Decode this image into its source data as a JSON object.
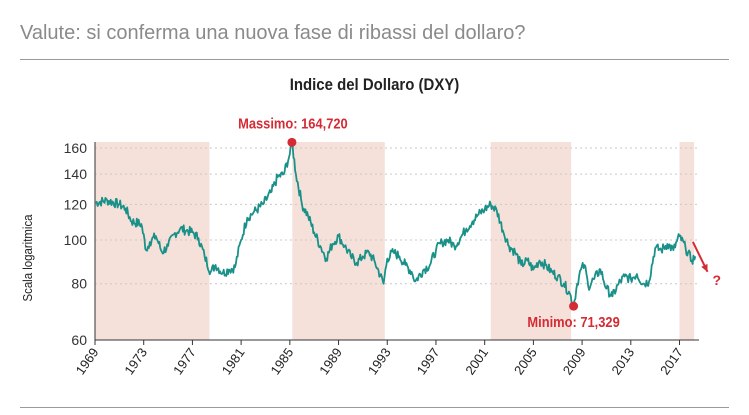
{
  "page": {
    "title": "Valute: si conferma una nuova fase di ribassi del dollaro?"
  },
  "chart_data": {
    "type": "line",
    "title": "Indice del Dollaro (DXY)",
    "ylabel": "Scala logaritmica",
    "xlabel": "",
    "y_scale": "log",
    "xlim": [
      1969,
      2018.6
    ],
    "ylim": [
      60,
      165
    ],
    "grid": {
      "horizontal": true,
      "style": "dotted"
    },
    "y_ticks": [
      60,
      80,
      100,
      120,
      140,
      160
    ],
    "x_ticks": [
      1969,
      1973,
      1977,
      1981,
      1985,
      1989,
      1993,
      1997,
      2001,
      2005,
      2009,
      2013,
      2017
    ],
    "x_tick_labels": [
      "1969",
      "1973",
      "1977",
      "1981",
      "1985",
      "1989",
      "1993",
      "1997",
      "2001",
      "2005",
      "2009",
      "2013",
      "2017"
    ],
    "shaded_periods": [
      {
        "start": 1969,
        "end": 1978.4
      },
      {
        "start": 1985.2,
        "end": 1992.8
      },
      {
        "start": 2001.5,
        "end": 2008.1
      },
      {
        "start": 2017.0,
        "end": 2018.2
      }
    ],
    "series": [
      {
        "x": [
          1969.0,
          1970.0,
          1971.0,
          1971.5,
          1972.0,
          1972.8,
          1973.2,
          1973.5,
          1974.0,
          1974.5,
          1975.0,
          1975.5,
          1976.0,
          1976.5,
          1977.0,
          1977.5,
          1978.0,
          1978.5,
          1978.9,
          1979.5,
          1980.0,
          1980.5,
          1981.0,
          1981.5,
          1982.0,
          1982.8,
          1983.5,
          1984.0,
          1984.5,
          1985.0,
          1985.17,
          1985.5,
          1986.0,
          1986.5,
          1987.0,
          1987.5,
          1988.0,
          1988.5,
          1989.0,
          1989.5,
          1990.0,
          1990.5,
          1991.0,
          1991.5,
          1992.0,
          1992.7,
          1993.0,
          1993.5,
          1994.0,
          1994.5,
          1995.0,
          1995.3,
          1996.0,
          1996.5,
          1997.0,
          1997.5,
          1998.0,
          1998.5,
          1999.0,
          1999.5,
          2000.0,
          2000.5,
          2001.0,
          2001.5,
          2002.0,
          2002.5,
          2003.0,
          2003.5,
          2004.0,
          2004.5,
          2005.0,
          2005.5,
          2006.0,
          2006.5,
          2007.0,
          2007.5,
          2008.0,
          2008.3,
          2008.6,
          2008.9,
          2009.2,
          2009.5,
          2010.0,
          2010.5,
          2011.0,
          2011.5,
          2012.0,
          2012.5,
          2013.0,
          2013.5,
          2014.0,
          2014.5,
          2015.0,
          2015.5,
          2016.0,
          2016.5,
          2017.0,
          2017.5,
          2018.0,
          2018.3
        ],
        "values": [
          121.0,
          122.5,
          120.0,
          117.5,
          110.0,
          108.5,
          95.0,
          99.0,
          102.0,
          94.0,
          97.0,
          103.0,
          106.0,
          105.0,
          104.0,
          101.0,
          92.0,
          85.0,
          88.0,
          84.5,
          86.0,
          87.0,
          100.0,
          112.0,
          115.0,
          120.0,
          128.0,
          138.0,
          140.0,
          155.0,
          164.72,
          140.0,
          120.0,
          113.0,
          104.0,
          97.0,
          91.0,
          98.0,
          102.0,
          97.0,
          92.0,
          89.0,
          92.0,
          94.0,
          89.0,
          80.0,
          91.0,
          94.0,
          92.0,
          88.0,
          85.0,
          81.0,
          86.0,
          88.0,
          95.0,
          99.0,
          100.0,
          97.0,
          101.0,
          106.0,
          110.0,
          114.0,
          117.0,
          120.0,
          116.0,
          105.0,
          97.0,
          94.0,
          88.0,
          90.0,
          86.0,
          90.0,
          88.0,
          85.0,
          83.0,
          80.0,
          76.0,
          71.329,
          80.0,
          86.0,
          88.0,
          79.0,
          82.0,
          86.0,
          78.0,
          75.0,
          80.0,
          83.0,
          82.0,
          84.0,
          80.0,
          81.0,
          96.0,
          95.0,
          98.0,
          95.0,
          102.0,
          96.0,
          90.0,
          92.0
        ]
      }
    ],
    "annotations": [
      {
        "label": "Massimo: 164,720",
        "x": 1985.17,
        "y": 164.72
      },
      {
        "label": "Minimo: 71,329",
        "x": 2008.3,
        "y": 71.329
      }
    ],
    "trend_marker": "?",
    "colors": {
      "line": "#1a9188",
      "shade": "#f6e1da",
      "marker": "#d52b35",
      "grid": "#c9c9c9"
    }
  }
}
